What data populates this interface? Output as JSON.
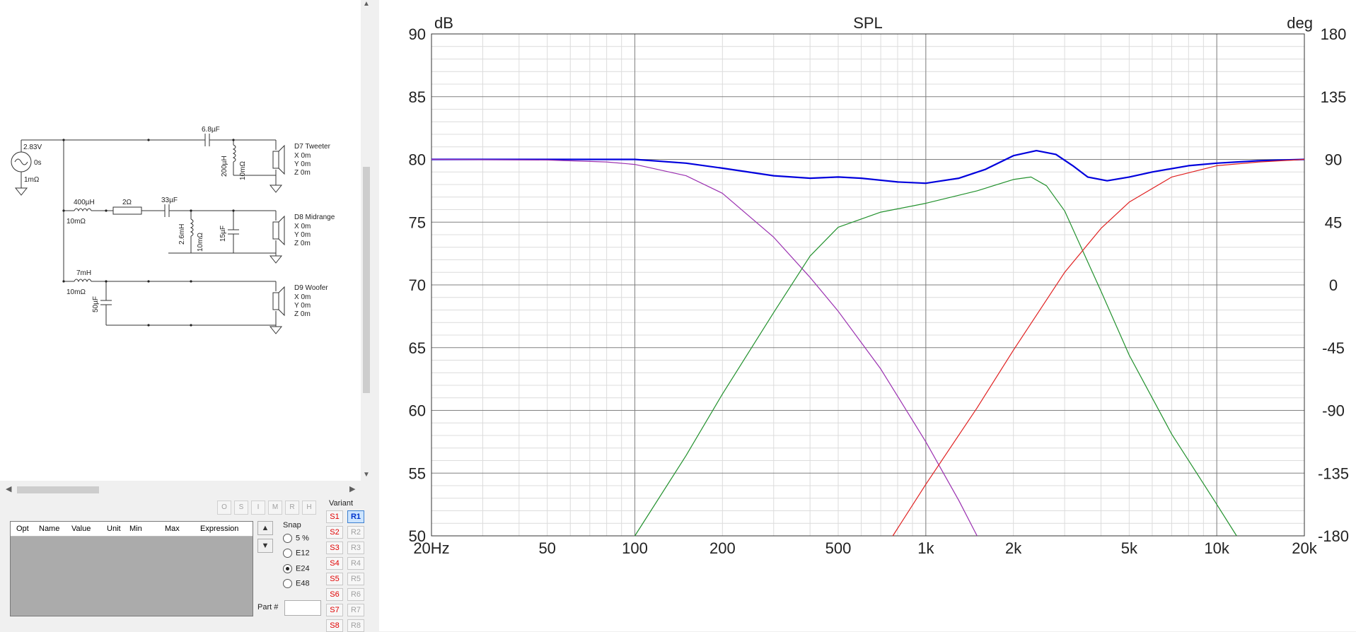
{
  "schematic": {
    "source": {
      "voltage": "2.83V",
      "delay": "0s",
      "resistance": "1mΩ"
    },
    "tweeter": {
      "label": "D7 Tweeter",
      "cap": "6.8µF",
      "inductor": "200µH",
      "inductor_r": "10mΩ",
      "x": "X 0m",
      "y": "Y 0m",
      "z": "Z 0m",
      "color": "#e00000"
    },
    "midrange": {
      "label": "D8 Midrange",
      "inductor": "400µH",
      "inductor_r": "10mΩ",
      "resistor": "2Ω",
      "cap": "33µF",
      "shunt_l": "2.6mH",
      "shunt_l_r": "10mΩ",
      "shunt_c": "15µF",
      "x": "X 0m",
      "y": "Y 0m",
      "z": "Z 0m",
      "color": "#008000"
    },
    "woofer": {
      "label": "D9 Woofer",
      "inductor": "7mH",
      "inductor_r": "10mΩ",
      "cap": "50µF",
      "x": "X 0m",
      "y": "Y 0m",
      "z": "Z 0m",
      "color": "#800080"
    }
  },
  "flag_buttons": [
    "O",
    "S",
    "I",
    "M",
    "R",
    "H"
  ],
  "opt_table": {
    "columns": [
      "Opt",
      "Name",
      "Value",
      "Unit",
      "Min",
      "Max",
      "Expression"
    ],
    "rows": []
  },
  "snap": {
    "label": "Snap",
    "options": [
      "5 %",
      "E12",
      "E24",
      "E48"
    ],
    "selected": "E24"
  },
  "part_label": "Part #",
  "part_value": "",
  "variant": {
    "label": "Variant",
    "s_buttons": [
      "S1",
      "S2",
      "S3",
      "S4",
      "S5",
      "S6",
      "S7",
      "S8"
    ],
    "r_buttons": [
      "R1",
      "R2",
      "R3",
      "R4",
      "R5",
      "R6",
      "R7",
      "R8"
    ],
    "active_r": "R1"
  },
  "chart_data": {
    "type": "line",
    "title": "SPL",
    "ylabel_left": "dB",
    "ylabel_right": "deg",
    "xscale": "log",
    "xlim": [
      20,
      20000
    ],
    "ylim": [
      50,
      90
    ],
    "y2lim": [
      -180,
      180
    ],
    "x_ticks": [
      20,
      50,
      100,
      200,
      500,
      1000,
      2000,
      5000,
      10000,
      20000
    ],
    "x_tick_labels": [
      "20Hz",
      "50",
      "100",
      "200",
      "500",
      "1k",
      "2k",
      "5k",
      "10k",
      "20k"
    ],
    "y_ticks": [
      90,
      85,
      80,
      75,
      70,
      65,
      60,
      55,
      50
    ],
    "y_tick_labels": [
      "90",
      "85",
      "80",
      "75",
      "70",
      "65",
      "60",
      "55",
      "50"
    ],
    "y2_ticks": [
      180,
      135,
      90,
      45,
      0,
      -45,
      -90,
      -135,
      -180
    ],
    "y2_tick_labels": [
      "180",
      "135",
      "90",
      "45",
      "0",
      "-45",
      "-90",
      "-135",
      "-180"
    ],
    "grid": true,
    "series": [
      {
        "color": "#0000dd",
        "width": 2.2,
        "x": [
          20,
          50,
          100,
          150,
          200,
          300,
          400,
          500,
          600,
          800,
          1000,
          1300,
          1600,
          2000,
          2400,
          2800,
          3200,
          3600,
          4200,
          5000,
          6000,
          8000,
          10000,
          14000,
          20000
        ],
        "y": [
          80,
          80,
          80,
          79.7,
          79.3,
          78.7,
          78.5,
          78.6,
          78.5,
          78.2,
          78.1,
          78.5,
          79.2,
          80.3,
          80.7,
          80.4,
          79.5,
          78.6,
          78.3,
          78.6,
          79.0,
          79.5,
          79.7,
          79.9,
          80
        ]
      },
      {
        "color": "#9a2fb0",
        "width": 1.2,
        "x": [
          20,
          50,
          80,
          100,
          150,
          200,
          300,
          400,
          500,
          700,
          1000,
          1300,
          1500
        ],
        "y": [
          80,
          79.95,
          79.8,
          79.6,
          78.7,
          77.3,
          73.8,
          70.6,
          67.9,
          63.3,
          57.5,
          52.8,
          50
        ]
      },
      {
        "color": "#22912d",
        "width": 1.2,
        "x": [
          100,
          150,
          200,
          300,
          400,
          500,
          700,
          1000,
          1500,
          2000,
          2300,
          2600,
          3000,
          4000,
          5000,
          7000,
          10000,
          11700
        ],
        "y": [
          50,
          56.4,
          61.3,
          67.8,
          72.3,
          74.6,
          75.8,
          76.5,
          77.5,
          78.4,
          78.6,
          77.9,
          75.9,
          69.5,
          64.4,
          58.1,
          52.5,
          50
        ]
      },
      {
        "color": "#e02020",
        "width": 1.2,
        "x": [
          770,
          1000,
          1500,
          2000,
          3000,
          4000,
          5000,
          7000,
          10000,
          14000,
          20000
        ],
        "y": [
          50,
          54.1,
          60.2,
          64.8,
          71.0,
          74.5,
          76.6,
          78.6,
          79.5,
          79.8,
          80
        ]
      }
    ]
  }
}
